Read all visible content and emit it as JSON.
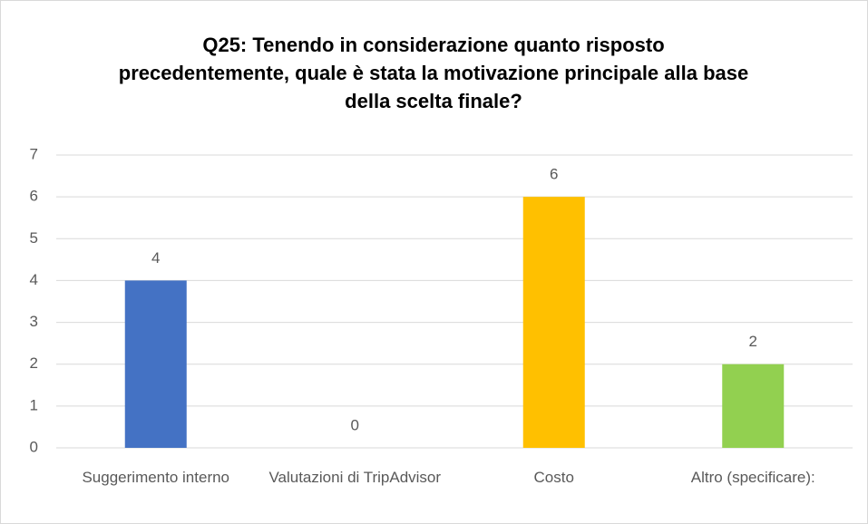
{
  "chart_data": {
    "type": "bar",
    "title": "Q25: Tenendo in considerazione quanto risposto precedentemente, quale è stata la motivazione principale alla base della scelta finale?",
    "categories": [
      "Suggerimento interno",
      "Valutazioni di TripAdvisor",
      "Costo",
      "Altro (specificare):"
    ],
    "values": [
      4,
      0,
      6,
      2
    ],
    "colors": [
      "#4472c4",
      "#ed7d31",
      "#ffc000",
      "#92d050"
    ],
    "ylim": [
      0,
      7
    ],
    "yticks": [
      0,
      1,
      2,
      3,
      4,
      5,
      6,
      7
    ],
    "grid": true
  }
}
